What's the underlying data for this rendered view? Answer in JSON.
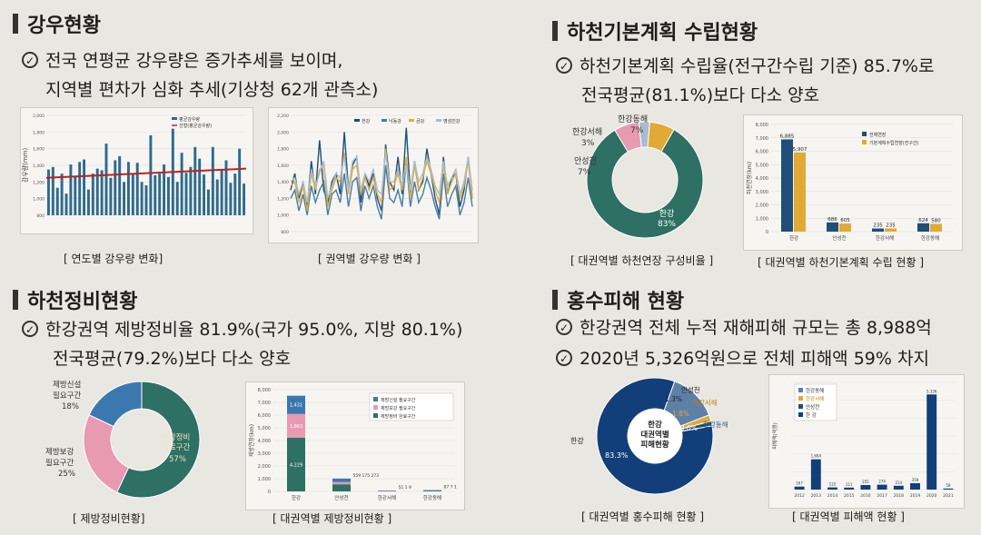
{
  "rainfall": {
    "title": "강우현황",
    "bullet1": "전국 연평균 강우량은 증가추세를 보이며,",
    "bullet1_cont": "지역별 편차가 심화  추세(기상청 62개 관측소)",
    "caption_left": "[ 연도별 강우량 변화]",
    "caption_right": "[ 권역별 강우량 변화 ]",
    "chart_left": {
      "type": "bar",
      "ylabel": "강우량(mm)",
      "yticks": [
        "2,000",
        "1,800",
        "1,600",
        "1,400",
        "1,200",
        "1,000",
        "800"
      ],
      "ylim": [
        800,
        2000
      ],
      "legend": [
        "평균강우량",
        "선형(평균강우량)"
      ],
      "values": [
        1350,
        1380,
        1130,
        1300,
        1060,
        1410,
        1270,
        1440,
        1470,
        1110,
        1300,
        1360,
        1340,
        1660,
        1250,
        1460,
        1510,
        1200,
        1440,
        1300,
        1430,
        1200,
        1160,
        1760,
        1280,
        1300,
        1410,
        1260,
        1840,
        1200,
        1550,
        1310,
        1380,
        1620,
        1480,
        1290,
        1110,
        1620,
        1230,
        1340,
        1460,
        1190,
        1300,
        1600,
        1180
      ],
      "trend": [
        1250,
        1360
      ]
    },
    "chart_right": {
      "type": "line",
      "yticks": [
        "2,200",
        "2,000",
        "1,800",
        "1,600",
        "1,400",
        "1,200",
        "1,000",
        "800"
      ],
      "ylim": [
        800,
        2200
      ],
      "legend": [
        "한강",
        "낙동강",
        "금강",
        "영섬진강"
      ],
      "series": [
        {
          "name": "한강",
          "color": "#1f4e79",
          "values": [
            1300,
            1500,
            1200,
            1400,
            1100,
            1650,
            1250,
            1900,
            1300,
            1150,
            1400,
            1500,
            1250,
            2000,
            1300,
            1600,
            1700,
            1150,
            1500,
            1350,
            1500,
            1200,
            1050,
            1850,
            1400,
            1300,
            1700,
            1250,
            2050,
            1250,
            1650,
            1300,
            1400,
            1800,
            1500,
            1200,
            1000,
            1700,
            1250,
            1450,
            1500,
            1100,
            1300,
            1700,
            1200
          ]
        },
        {
          "name": "낙동강",
          "color": "#4a7aa6",
          "values": [
            1200,
            1300,
            1050,
            1250,
            1000,
            1350,
            1150,
            1300,
            1400,
            1000,
            1250,
            1300,
            1150,
            1500,
            1100,
            1400,
            1450,
            1050,
            1350,
            1200,
            1350,
            1100,
            950,
            1600,
            1200,
            1150,
            1300,
            1100,
            1650,
            1100,
            1400,
            1150,
            1250,
            1450,
            1300,
            1100,
            950,
            1500,
            1100,
            1250,
            1350,
            1000,
            1150,
            1450,
            1100
          ]
        },
        {
          "name": "금강",
          "color": "#e0ad3a",
          "values": [
            1350,
            1400,
            1150,
            1350,
            1050,
            1500,
            1300,
            1550,
            1600,
            1100,
            1300,
            1450,
            1400,
            1750,
            1250,
            1550,
            1600,
            1250,
            1450,
            1300,
            1450,
            1250,
            1150,
            1800,
            1300,
            1350,
            1500,
            1300,
            1700,
            1200,
            1600,
            1300,
            1450,
            1650,
            1500,
            1300,
            1150,
            1600,
            1250,
            1400,
            1500,
            1200,
            1350,
            1650,
            1200
          ]
        },
        {
          "name": "영섬진강",
          "color": "#a6bcd1",
          "values": [
            1400,
            1450,
            1250,
            1400,
            1150,
            1550,
            1350,
            1500,
            1650,
            1200,
            1350,
            1500,
            1450,
            1700,
            1300,
            1650,
            1700,
            1300,
            1500,
            1400,
            1550,
            1300,
            1250,
            1750,
            1400,
            1400,
            1550,
            1350,
            1600,
            1300,
            1650,
            1400,
            1500,
            1700,
            1550,
            1350,
            1250,
            1650,
            1350,
            1450,
            1550,
            1250,
            1400,
            1700,
            1300
          ]
        }
      ]
    }
  },
  "river_plan": {
    "title": "하천기본계획 수립현황",
    "bullet1": "하천기본계획 수립율(전구간수립 기준) 85.7%로",
    "bullet1_cont": "전국평균(81.1%)보다 다소 양호",
    "caption_left": "대권역별 하천연장 구성비율",
    "caption_right": "[ 대권역별 하천기본계획 수립 현황 ]",
    "donut": {
      "type": "pie",
      "slices": [
        {
          "label": "한강",
          "pct": "83%",
          "value": 83,
          "color": "#2e7063"
        },
        {
          "label": "안성천",
          "pct": "7%",
          "value": 7,
          "color": "#e79ab2"
        },
        {
          "label": "한강서해",
          "pct": "3%",
          "value": 3,
          "color": "#a9bdd0"
        },
        {
          "label": "한강동해",
          "pct": "7%",
          "value": 7,
          "color": "#e2a934"
        }
      ]
    },
    "bars": {
      "type": "bar",
      "yticks": [
        "8,000",
        "7,000",
        "6,000",
        "5,000",
        "4,000",
        "3,000",
        "2,000",
        "1,000",
        "0"
      ],
      "ylim": [
        0,
        8000
      ],
      "ylabel": "하천연장(km)",
      "legend": [
        "전체연장",
        "기본계획수립연장(전구간)"
      ],
      "categories": [
        "한강",
        "안성천",
        "한강서해",
        "한강동해"
      ],
      "series": [
        {
          "name": "전체연장",
          "color": "#1f4e79",
          "values": [
            6885,
            686,
            235,
            624
          ]
        },
        {
          "name": "기본계획수립연장(전구간)",
          "color": "#e2a934",
          "values": [
            5907,
            605,
            235,
            580
          ]
        }
      ],
      "labels": [
        [
          "6,885",
          "5,907"
        ],
        [
          "686",
          "605"
        ],
        [
          "235",
          "235"
        ],
        [
          "624",
          "580"
        ]
      ]
    }
  },
  "embankment": {
    "title": "하천정비현황",
    "bullet1": "한강권역 제방정비율 81.9%(국가 95.0%, 지방 80.1%)",
    "bullet1_cont": "전국평균(79.2%)보다 다소 양호",
    "caption_left": "[ 제방정비현황]",
    "caption_right": "[ 대권역별 제방정비현황 ]",
    "donut": {
      "type": "pie",
      "slices": [
        {
          "label": "제방정비 완료구간",
          "pct": "57%",
          "value": 57,
          "color": "#2e7063"
        },
        {
          "label": "제방보강 필요구간",
          "pct": "25%",
          "value": 25,
          "color": "#e79ab2"
        },
        {
          "label": "제방신설 필요구간",
          "pct": "18%",
          "value": 18,
          "color": "#3c78b0"
        }
      ]
    },
    "bars": {
      "type": "bar",
      "yticks": [
        "8,000",
        "7,000",
        "6,000",
        "5,000",
        "4,000",
        "3,000",
        "2,000",
        "1,000",
        "0"
      ],
      "ylim": [
        0,
        8000
      ],
      "ylabel": "제방연장(km)",
      "legend": [
        "제방신설 필요구간",
        "제방보강 필요구간",
        "제방정비 완료구간"
      ],
      "categories": [
        "한강",
        "안성천",
        "한강서해",
        "한강동해"
      ],
      "stack": [
        [
          4229,
          1863,
          1431
        ],
        [
          559,
          175,
          273
        ],
        [
          51,
          1,
          9
        ],
        [
          87,
          7,
          1
        ]
      ],
      "colors": [
        "#2e7063",
        "#e79ab2",
        "#3c78b0"
      ],
      "labels": [
        [
          "4,229",
          "1,863",
          "1,431"
        ],
        [
          "559",
          "175",
          "273"
        ],
        [
          "51",
          "1",
          "9"
        ],
        [
          "87",
          "7",
          "1"
        ]
      ]
    }
  },
  "flood": {
    "title": "홍수피해 현황",
    "bullet1": "한강권역 전체 누적 재해피해 규모는 총 8,988억",
    "bullet2": "2020년 5,326억원으로 전체 피해액 59% 차지",
    "caption_left": "[ 대권역별 홍수피해 현황 ]",
    "caption_right": "[ 대권역별 피해액 현황 ]",
    "donut": {
      "type": "pie",
      "center": [
        "한강",
        "대권역별",
        "피해현황"
      ],
      "slices": [
        {
          "label": "한강",
          "pct": "83.3%",
          "value": 83.3,
          "color": "#123f7a"
        },
        {
          "label": "한강동해",
          "pct": "13.6%",
          "value": 13.6,
          "color": "#5d7fa8"
        },
        {
          "label": "한강서해",
          "pct": "1.8%",
          "value": 1.8,
          "color": "#e2a934"
        },
        {
          "label": "안성천",
          "pct": "1.3%",
          "value": 1.3,
          "color": "#1f4e79"
        }
      ]
    },
    "bars": {
      "type": "bar",
      "ylabel": "피해액(억원)",
      "ylim": [
        0,
        6000
      ],
      "legend": [
        "한강동해",
        "한강서해",
        "안성천",
        "한 강"
      ],
      "categories": [
        "2012",
        "2013",
        "2014",
        "2015",
        "2016",
        "2017",
        "2018",
        "2019",
        "2020",
        "2021"
      ],
      "values": [
        167,
        1694,
        122,
        111,
        255,
        274,
        214,
        359,
        5326,
        59
      ],
      "value_labels": [
        "167",
        "1,694",
        "122",
        "111",
        "255",
        "274",
        "214",
        "359",
        "5,326",
        "59"
      ]
    }
  }
}
